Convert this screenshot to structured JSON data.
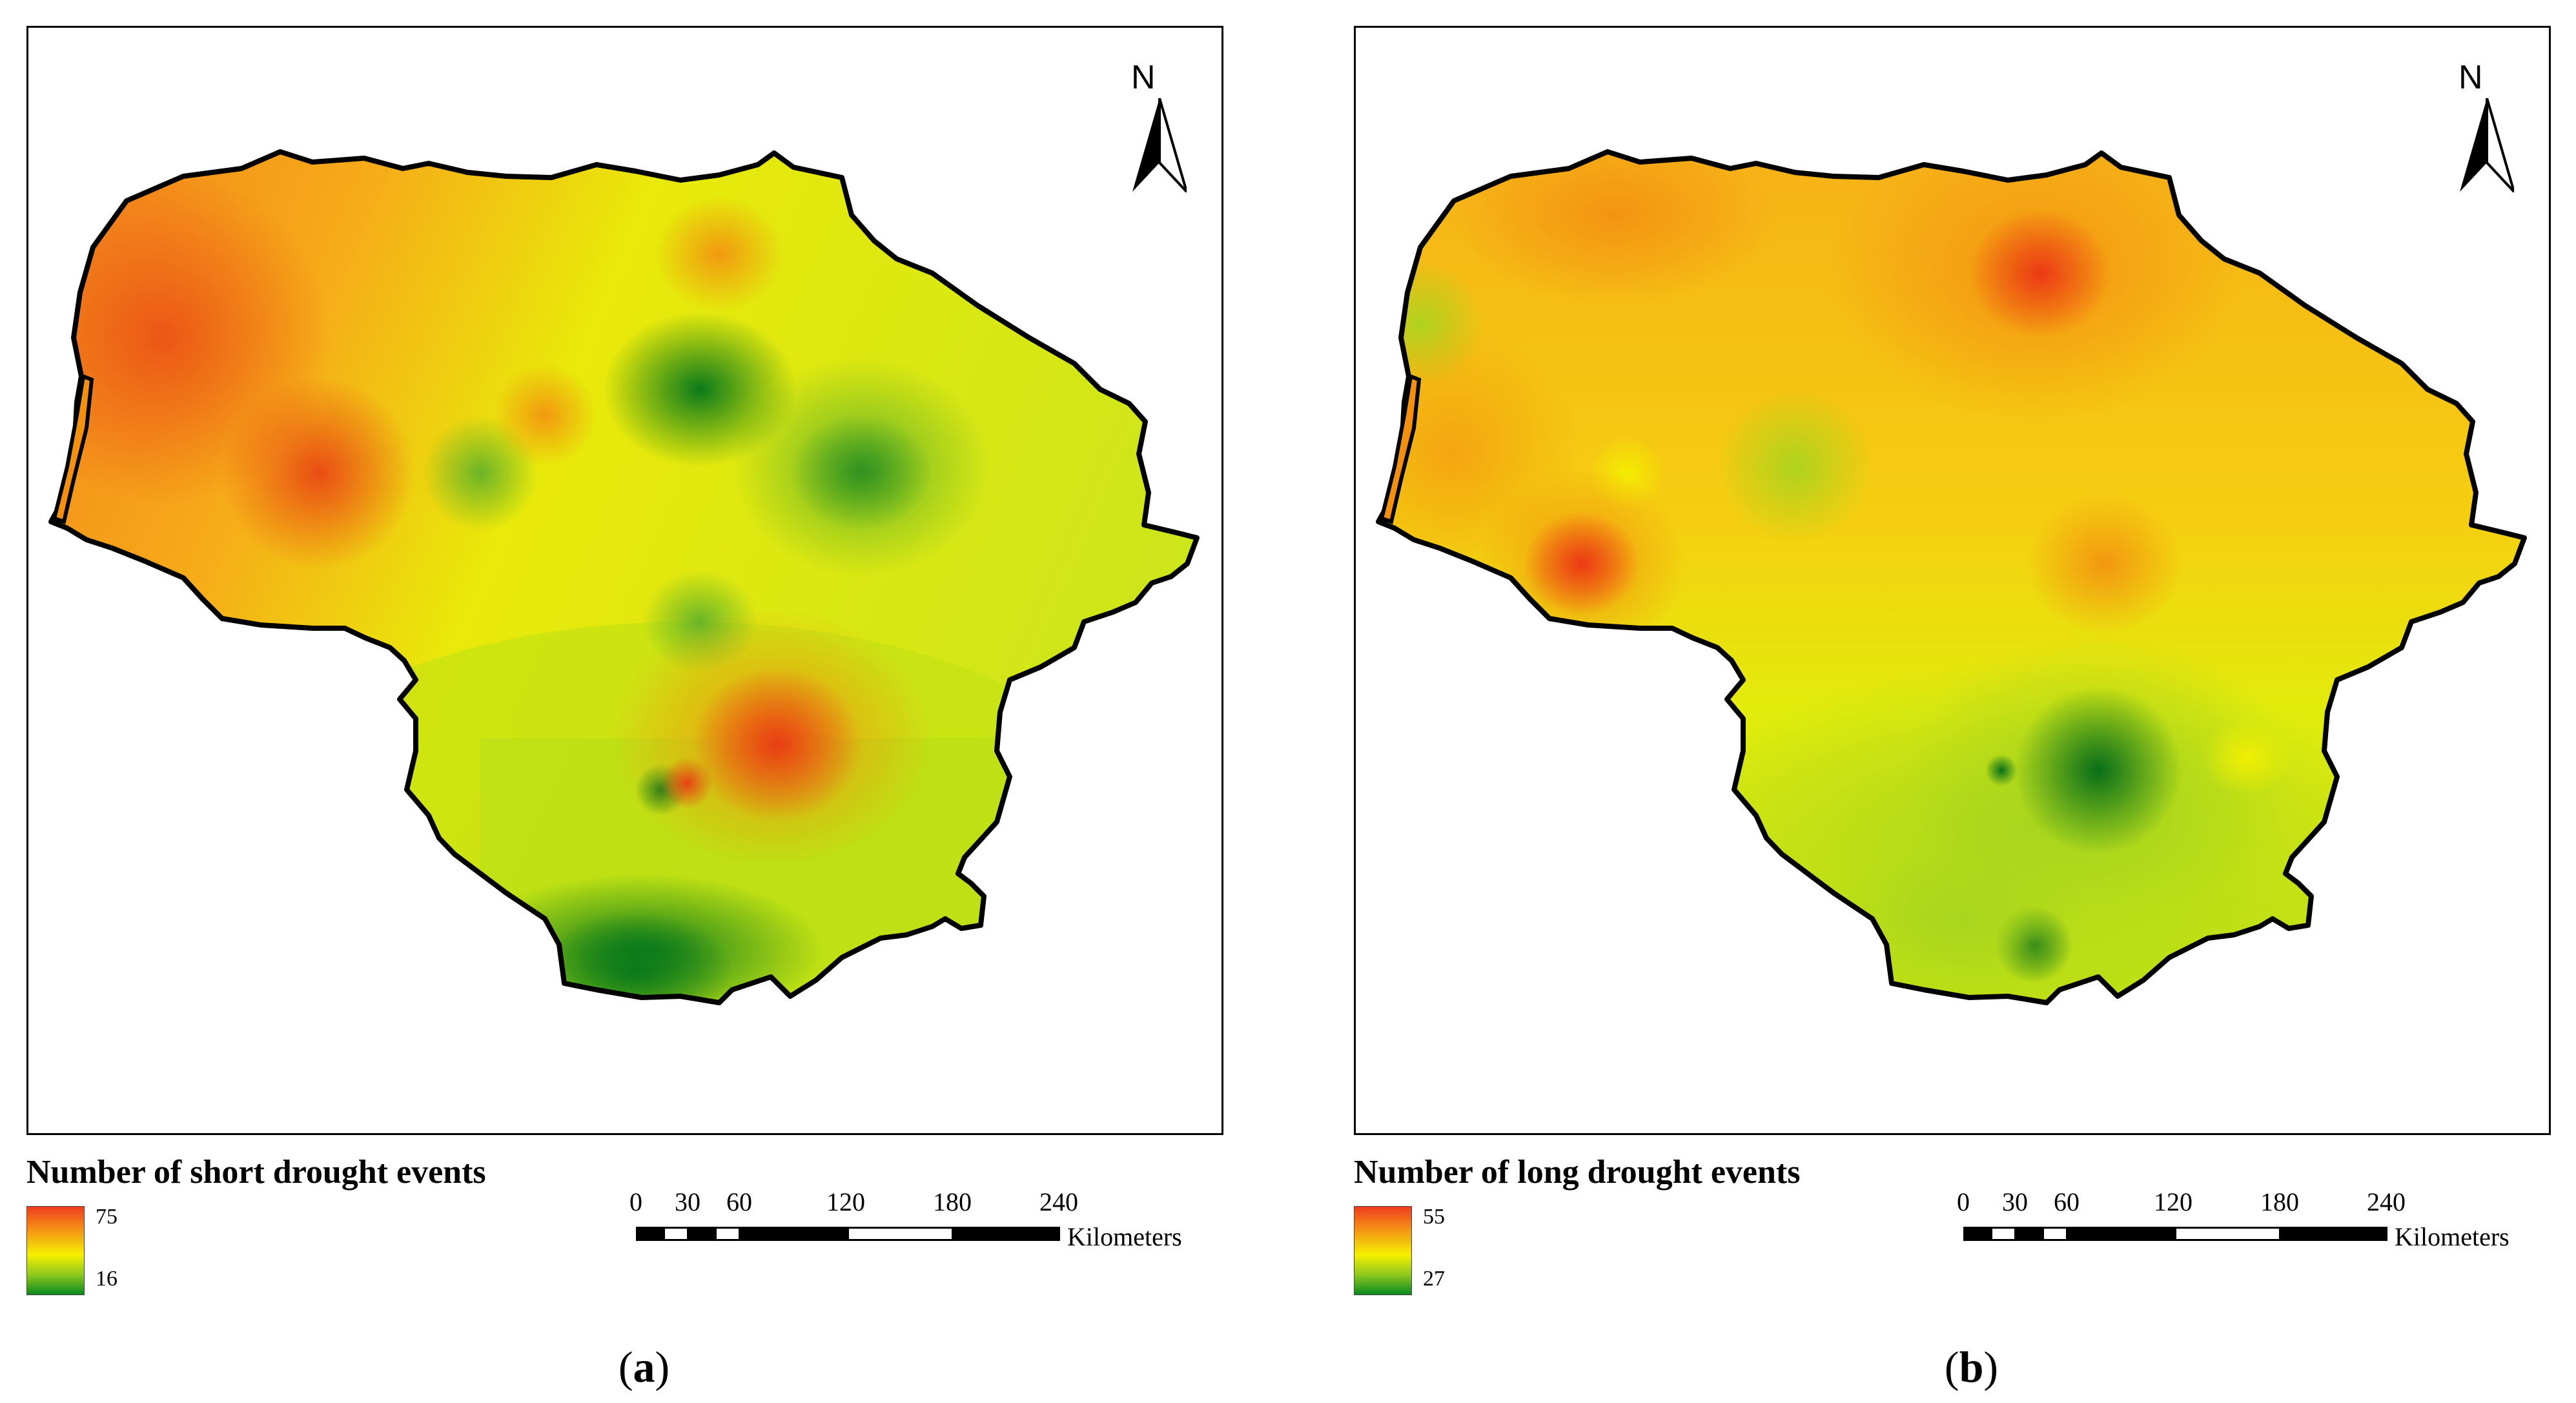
{
  "panels": [
    {
      "id": "a",
      "north_label": "N",
      "legend_title": "Number of short drought events",
      "legend_max": "75",
      "legend_min": "16",
      "scale_ticks": [
        "0",
        "30",
        "60",
        "120",
        "180",
        "240"
      ],
      "scale_unit": "Kilometers",
      "caption_open": "(",
      "caption_letter": "a",
      "caption_close": ")"
    },
    {
      "id": "b",
      "north_label": "N",
      "legend_title": "Number of long drought events",
      "legend_max": "55",
      "legend_min": "27",
      "scale_ticks": [
        "0",
        "30",
        "60",
        "120",
        "180",
        "240"
      ],
      "scale_unit": "Kilometers",
      "caption_open": "(",
      "caption_letter": "b",
      "caption_close": ")"
    }
  ],
  "colors": {
    "high": "#f03c1e",
    "mid": "#f5f000",
    "low": "#0a8a1e",
    "outline": "#000000"
  }
}
